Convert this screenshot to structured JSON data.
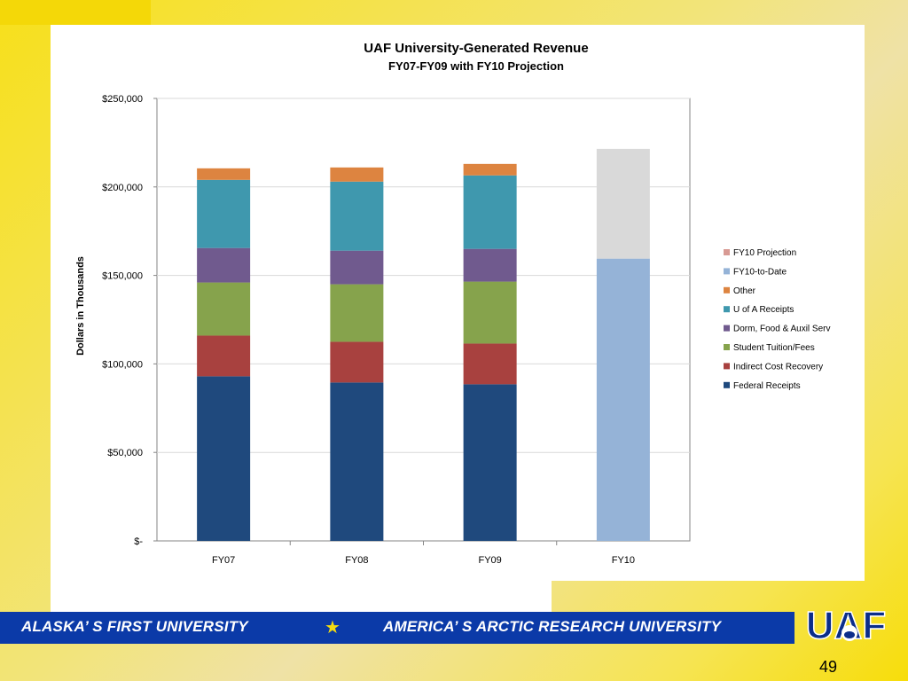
{
  "chart_data": {
    "type": "bar",
    "stacked": true,
    "title": "UAF University-Generated Revenue",
    "subtitle": "FY07-FY09 with FY10 Projection",
    "ylabel": "Dollars in Thousands",
    "xlabel": "",
    "ylim": [
      0,
      250000
    ],
    "yticks": [
      {
        "value": 0,
        "label": "$-"
      },
      {
        "value": 50000,
        "label": "$50,000"
      },
      {
        "value": 100000,
        "label": "$100,000"
      },
      {
        "value": 150000,
        "label": "$150,000"
      },
      {
        "value": 200000,
        "label": "$200,000"
      },
      {
        "value": 250000,
        "label": "$250,000"
      }
    ],
    "grid": true,
    "legend_position": "right",
    "categories": [
      "FY07",
      "FY08",
      "FY09",
      "FY10"
    ],
    "series": [
      {
        "name": "Federal Receipts",
        "color": "#1f497d",
        "values": [
          93000,
          89500,
          88500,
          0
        ]
      },
      {
        "name": "Indirect Cost Recovery",
        "color": "#a8413f",
        "values": [
          23000,
          23000,
          23000,
          0
        ]
      },
      {
        "name": "Student Tuition/Fees",
        "color": "#86a34c",
        "values": [
          30000,
          32500,
          35000,
          0
        ]
      },
      {
        "name": "Dorm, Food & Auxil Serv",
        "color": "#705a8e",
        "values": [
          19500,
          19000,
          18500,
          0
        ]
      },
      {
        "name": "U of A Receipts",
        "color": "#3f98ae",
        "values": [
          38500,
          39000,
          41500,
          0
        ]
      },
      {
        "name": "Other",
        "color": "#dd8440",
        "values": [
          6500,
          8000,
          6500,
          0
        ]
      },
      {
        "name": "FY10-to-Date",
        "color": "#95b3d7",
        "values": [
          0,
          0,
          0,
          159500
        ]
      },
      {
        "name": "FY10 Projection",
        "color": "#d9d9d9",
        "legend_color": "#d89a94",
        "values": [
          0,
          0,
          0,
          62000
        ]
      }
    ]
  },
  "footer": {
    "left_text": "ALASKA’ S FIRST UNIVERSITY",
    "star": "★",
    "right_text": "AMERICA’ S ARCTIC RESEARCH UNIVERSITY",
    "logo_text": "UAF",
    "page_number": "49"
  },
  "colors": {
    "banner": "#0b3aa8",
    "accent_yellow": "#f4dc10"
  }
}
